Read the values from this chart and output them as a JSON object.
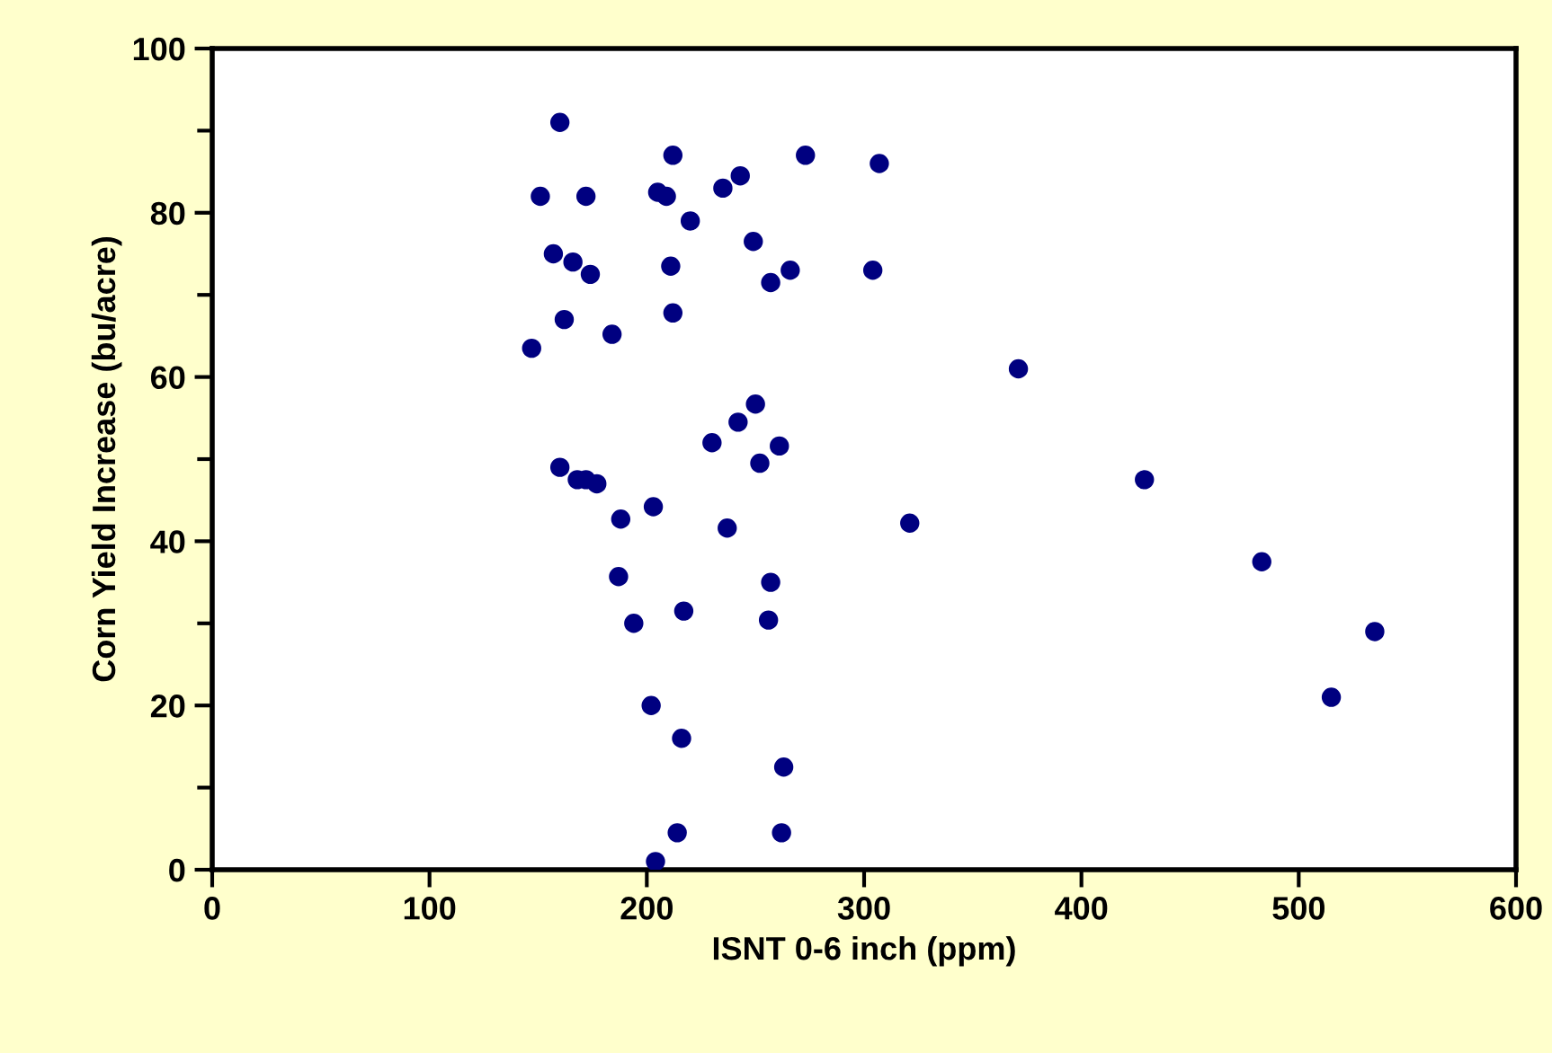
{
  "chart_data": {
    "type": "scatter",
    "xlabel": "ISNT 0-6 inch (ppm)",
    "ylabel": "Corn Yield Increase (bu/acre)",
    "series": [
      {
        "color": "#000080",
        "x": [
          160,
          151,
          172,
          157,
          166,
          174,
          162,
          147,
          184,
          205,
          209,
          212,
          220,
          235,
          243,
          211,
          212,
          249,
          257,
          266,
          273,
          304,
          307,
          160,
          168,
          172,
          177,
          188,
          203,
          187,
          194,
          217,
          202,
          216,
          204,
          214,
          230,
          242,
          250,
          252,
          261,
          237,
          257,
          256,
          263,
          262,
          321,
          371,
          429,
          483,
          515,
          535
        ],
        "values": [
          91,
          82,
          82,
          75,
          74,
          72.5,
          67,
          63.5,
          65.2,
          82.5,
          82,
          87,
          79,
          83,
          84.5,
          73.5,
          67.8,
          76.5,
          71.5,
          73,
          87,
          73,
          86,
          49,
          47.5,
          47.5,
          47,
          42.7,
          44.2,
          35.7,
          30,
          31.5,
          20,
          16,
          1,
          4.5,
          52,
          54.5,
          56.7,
          49.5,
          51.6,
          41.6,
          35,
          30.4,
          12.5,
          4.5,
          42.2,
          61,
          47.5,
          37.5,
          21,
          29
        ]
      }
    ],
    "xlim": [
      0,
      600
    ],
    "xticks": [
      0,
      100,
      200,
      300,
      400,
      500,
      600
    ],
    "ylim": [
      0,
      100
    ],
    "yticks": [
      0,
      20,
      40,
      60,
      80,
      100
    ],
    "grid": false,
    "legend": false,
    "marker": "circle"
  }
}
